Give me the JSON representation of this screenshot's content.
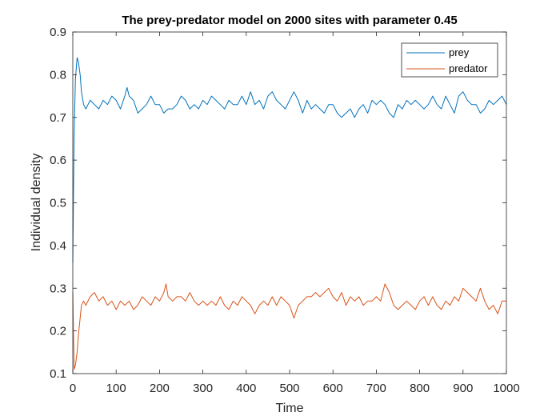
{
  "chart_data": {
    "type": "line",
    "title": "The prey-predator model on 2000 sites with parameter 0.45",
    "xlabel": "Time",
    "ylabel": "Individual density",
    "xlim": [
      0,
      1000
    ],
    "ylim": [
      0.1,
      0.9
    ],
    "xticks": [
      "0",
      "100",
      "200",
      "300",
      "400",
      "500",
      "600",
      "700",
      "800",
      "900",
      "1000"
    ],
    "yticks": [
      "0.1",
      "0.2",
      "0.3",
      "0.4",
      "0.5",
      "0.6",
      "0.7",
      "0.8",
      "0.9"
    ],
    "grid": false,
    "legend_position": "top-right",
    "series": [
      {
        "name": "prey",
        "color": "#0072BD",
        "x": [
          0,
          3,
          6,
          10,
          13,
          17,
          20,
          25,
          30,
          40,
          50,
          60,
          70,
          80,
          90,
          100,
          110,
          120,
          125,
          130,
          140,
          150,
          160,
          170,
          180,
          190,
          200,
          210,
          220,
          230,
          240,
          250,
          260,
          270,
          280,
          290,
          300,
          310,
          320,
          330,
          340,
          350,
          360,
          370,
          380,
          390,
          400,
          410,
          420,
          430,
          440,
          450,
          460,
          470,
          480,
          490,
          500,
          510,
          520,
          530,
          540,
          550,
          560,
          570,
          580,
          590,
          600,
          610,
          620,
          630,
          640,
          650,
          660,
          670,
          680,
          690,
          700,
          710,
          720,
          730,
          740,
          750,
          760,
          770,
          780,
          790,
          800,
          810,
          820,
          830,
          840,
          850,
          860,
          870,
          880,
          890,
          900,
          910,
          920,
          930,
          940,
          950,
          960,
          970,
          980,
          990,
          1000
        ],
        "y": [
          0.36,
          0.66,
          0.79,
          0.84,
          0.83,
          0.8,
          0.76,
          0.73,
          0.72,
          0.74,
          0.73,
          0.72,
          0.74,
          0.73,
          0.75,
          0.74,
          0.72,
          0.75,
          0.77,
          0.75,
          0.74,
          0.71,
          0.72,
          0.73,
          0.75,
          0.73,
          0.73,
          0.71,
          0.72,
          0.72,
          0.73,
          0.75,
          0.74,
          0.72,
          0.73,
          0.72,
          0.74,
          0.73,
          0.75,
          0.74,
          0.73,
          0.72,
          0.74,
          0.73,
          0.73,
          0.75,
          0.73,
          0.76,
          0.73,
          0.74,
          0.72,
          0.75,
          0.76,
          0.74,
          0.73,
          0.72,
          0.74,
          0.76,
          0.74,
          0.71,
          0.74,
          0.72,
          0.73,
          0.72,
          0.71,
          0.73,
          0.73,
          0.71,
          0.7,
          0.71,
          0.72,
          0.7,
          0.72,
          0.73,
          0.71,
          0.74,
          0.73,
          0.74,
          0.73,
          0.71,
          0.7,
          0.73,
          0.72,
          0.74,
          0.73,
          0.74,
          0.73,
          0.72,
          0.73,
          0.75,
          0.73,
          0.72,
          0.75,
          0.73,
          0.71,
          0.75,
          0.76,
          0.74,
          0.73,
          0.73,
          0.71,
          0.72,
          0.74,
          0.73,
          0.74,
          0.75,
          0.73
        ]
      },
      {
        "name": "predator",
        "color": "#D95319",
        "x": [
          0,
          3,
          6,
          10,
          13,
          17,
          20,
          25,
          30,
          40,
          50,
          60,
          70,
          80,
          90,
          100,
          110,
          120,
          130,
          140,
          150,
          160,
          170,
          180,
          190,
          200,
          210,
          215,
          220,
          230,
          240,
          250,
          260,
          270,
          280,
          290,
          300,
          310,
          320,
          330,
          340,
          350,
          360,
          370,
          380,
          390,
          400,
          410,
          420,
          430,
          440,
          450,
          460,
          470,
          480,
          490,
          500,
          510,
          520,
          530,
          540,
          550,
          560,
          570,
          580,
          590,
          600,
          610,
          620,
          630,
          640,
          650,
          660,
          670,
          680,
          690,
          700,
          710,
          720,
          730,
          740,
          750,
          760,
          770,
          780,
          790,
          800,
          810,
          820,
          830,
          840,
          850,
          860,
          870,
          880,
          890,
          900,
          910,
          920,
          930,
          940,
          950,
          960,
          970,
          980,
          990,
          1000
        ],
        "y": [
          0.29,
          0.11,
          0.12,
          0.15,
          0.19,
          0.23,
          0.26,
          0.27,
          0.26,
          0.28,
          0.29,
          0.27,
          0.28,
          0.26,
          0.27,
          0.25,
          0.27,
          0.26,
          0.27,
          0.25,
          0.26,
          0.28,
          0.27,
          0.26,
          0.28,
          0.27,
          0.29,
          0.31,
          0.28,
          0.27,
          0.28,
          0.28,
          0.27,
          0.29,
          0.27,
          0.26,
          0.27,
          0.26,
          0.27,
          0.26,
          0.28,
          0.26,
          0.25,
          0.27,
          0.26,
          0.28,
          0.27,
          0.26,
          0.24,
          0.26,
          0.27,
          0.26,
          0.28,
          0.26,
          0.28,
          0.27,
          0.26,
          0.23,
          0.26,
          0.27,
          0.28,
          0.28,
          0.29,
          0.28,
          0.29,
          0.3,
          0.28,
          0.27,
          0.29,
          0.26,
          0.28,
          0.27,
          0.28,
          0.26,
          0.27,
          0.27,
          0.28,
          0.27,
          0.31,
          0.29,
          0.26,
          0.25,
          0.26,
          0.27,
          0.26,
          0.25,
          0.27,
          0.28,
          0.26,
          0.28,
          0.26,
          0.25,
          0.27,
          0.26,
          0.28,
          0.27,
          0.3,
          0.29,
          0.28,
          0.27,
          0.3,
          0.27,
          0.25,
          0.26,
          0.24,
          0.27,
          0.27
        ]
      }
    ]
  }
}
